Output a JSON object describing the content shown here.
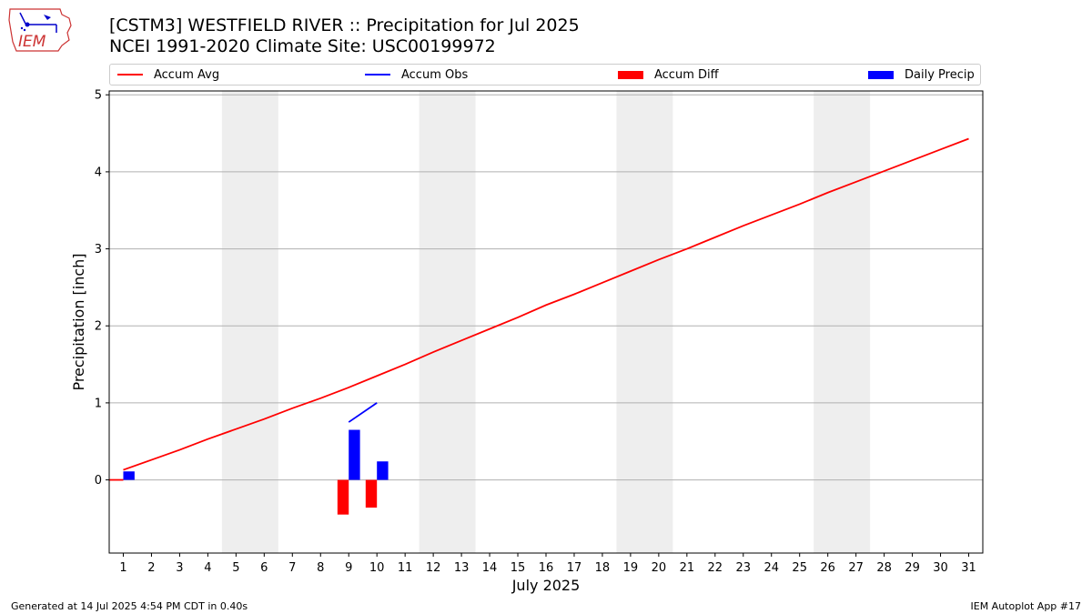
{
  "header": {
    "title_line1": "[CSTM3] WESTFIELD RIVER :: Precipitation for Jul 2025",
    "title_line2": "NCEI 1991-2020 Climate Site: USC00199972",
    "logo_text": "IEM"
  },
  "legend": {
    "items": [
      {
        "label": "Accum Avg",
        "color": "#ff0000",
        "kind": "line"
      },
      {
        "label": "Accum Obs",
        "color": "#0000ff",
        "kind": "line"
      },
      {
        "label": "Accum Diff",
        "color": "#ff0000",
        "kind": "box"
      },
      {
        "label": "Daily Precip",
        "color": "#0000ff",
        "kind": "box"
      }
    ]
  },
  "footer": {
    "generated": "Generated at 14 Jul 2025 4:54 PM CDT in 0.40s",
    "app": "IEM Autoplot App #17"
  },
  "chart_data": {
    "type": "line",
    "xlabel": "July 2025",
    "ylabel": "Precipitation [inch]",
    "xlim": [
      0.5,
      31.5
    ],
    "ylim": [
      -0.95,
      5.05
    ],
    "yticks": [
      0,
      1,
      2,
      3,
      4,
      5
    ],
    "xticks": [
      1,
      2,
      3,
      4,
      5,
      6,
      7,
      8,
      9,
      10,
      11,
      12,
      13,
      14,
      15,
      16,
      17,
      18,
      19,
      20,
      21,
      22,
      23,
      24,
      25,
      26,
      27,
      28,
      29,
      30,
      31
    ],
    "weekend_shading": [
      [
        4.5,
        6.5
      ],
      [
        11.5,
        13.5
      ],
      [
        18.5,
        20.5
      ],
      [
        25.5,
        27.5
      ]
    ],
    "grid": "horizontal",
    "legend_position": "top",
    "series": [
      {
        "name": "Accum Avg",
        "type": "line",
        "color": "#ff0000",
        "x": [
          1,
          2,
          3,
          4,
          5,
          6,
          7,
          8,
          9,
          10,
          11,
          12,
          13,
          14,
          15,
          16,
          17,
          18,
          19,
          20,
          21,
          22,
          23,
          24,
          25,
          26,
          27,
          28,
          29,
          30,
          31
        ],
        "values": [
          0.13,
          0.26,
          0.39,
          0.53,
          0.66,
          0.79,
          0.93,
          1.06,
          1.2,
          1.35,
          1.5,
          1.66,
          1.81,
          1.96,
          2.11,
          2.27,
          2.41,
          2.56,
          2.71,
          2.86,
          3.0,
          3.15,
          3.3,
          3.44,
          3.58,
          3.73,
          3.87,
          4.01,
          4.15,
          4.29,
          4.43
        ]
      },
      {
        "name": "Accum Obs",
        "type": "line",
        "color": "#0000ff",
        "x": [
          9,
          10
        ],
        "values": [
          0.75,
          1.0
        ]
      },
      {
        "name": "Accum Diff",
        "type": "bar",
        "color": "#ff0000",
        "x": [
          9,
          10
        ],
        "values": [
          -0.45,
          -0.36
        ]
      },
      {
        "name": "Daily Precip",
        "type": "bar",
        "color": "#0000ff",
        "x": [
          1,
          9,
          10
        ],
        "values": [
          0.11,
          0.65,
          0.24
        ]
      }
    ],
    "extra_avg_start": {
      "x": [
        0.5,
        1
      ],
      "values": [
        0.0,
        0.0
      ]
    }
  }
}
